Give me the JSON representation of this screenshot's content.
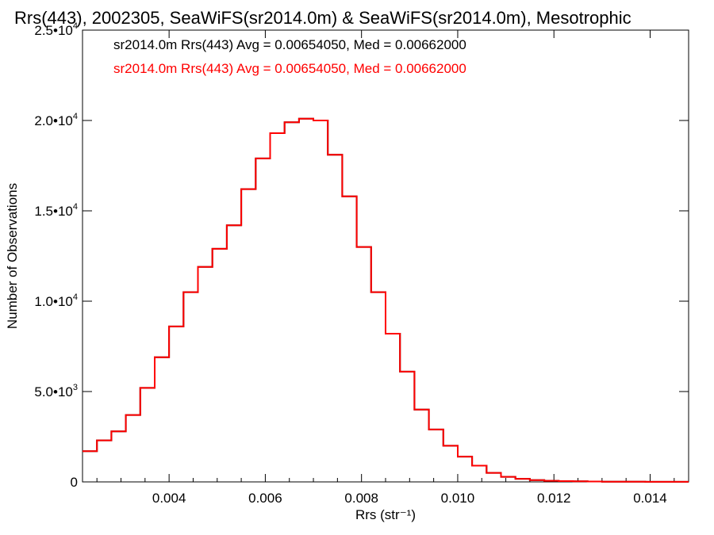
{
  "chart_data": {
    "type": "line",
    "title": "Rrs(443), 2002305, SeaWiFS(sr2014.0m) & SeaWiFS(sr2014.0m), Mesotrophic",
    "xlabel": "Rrs (str⁻¹)",
    "ylabel": "Number of Observations",
    "xlim": [
      0.0022,
      0.0148
    ],
    "ylim": [
      0,
      25000
    ],
    "x_ticks": [
      0.004,
      0.006,
      0.008,
      0.01,
      0.012,
      0.014
    ],
    "x_tick_labels": [
      "0.004",
      "0.006",
      "0.008",
      "0.010",
      "0.012",
      "0.014"
    ],
    "y_ticks": [
      0,
      5000,
      10000,
      15000,
      20000,
      25000
    ],
    "y_tick_labels": [
      {
        "base": "0",
        "exp": ""
      },
      {
        "base": "5.0•10",
        "exp": "3"
      },
      {
        "base": "1.0•10",
        "exp": "4"
      },
      {
        "base": "1.5•10",
        "exp": "4"
      },
      {
        "base": "2.0•10",
        "exp": "4"
      },
      {
        "base": "2.5•10",
        "exp": "4"
      }
    ],
    "grid": false,
    "legend_position": "top-left",
    "annotations": [
      {
        "text": "sr2014.0m Rrs(443) Avg = 0.00654050, Med = 0.00662000",
        "color": "#000000"
      },
      {
        "text": "sr2014.0m Rrs(443) Avg = 0.00654050, Med = 0.00662000",
        "color": "#ff0000"
      }
    ],
    "series": [
      {
        "color": "#000000",
        "x": [
          0.0022,
          0.0025,
          0.0028,
          0.0031,
          0.0034,
          0.0037,
          0.004,
          0.0043,
          0.0046,
          0.0049,
          0.0052,
          0.0055,
          0.0058,
          0.0061,
          0.0064,
          0.0067,
          0.007,
          0.0073,
          0.0076,
          0.0079,
          0.0082,
          0.0085,
          0.0088,
          0.0091,
          0.0094,
          0.0097,
          0.01,
          0.0103,
          0.0106,
          0.0109,
          0.0112,
          0.0115,
          0.0118,
          0.0121,
          0.0124,
          0.0127,
          0.013,
          0.0133,
          0.0136,
          0.0139,
          0.0142,
          0.0145,
          0.0148
        ],
        "y": [
          1700,
          2300,
          2800,
          3700,
          5200,
          6900,
          8600,
          10500,
          11900,
          12900,
          14200,
          16200,
          17900,
          19300,
          19900,
          20100,
          20000,
          18100,
          15800,
          13000,
          10500,
          8200,
          6100,
          4000,
          2900,
          2000,
          1400,
          900,
          500,
          280,
          170,
          100,
          60,
          45,
          30,
          22,
          15,
          10,
          8,
          6,
          5,
          4,
          3
        ]
      },
      {
        "color": "#ff0000",
        "x": [
          0.0022,
          0.0025,
          0.0028,
          0.0031,
          0.0034,
          0.0037,
          0.004,
          0.0043,
          0.0046,
          0.0049,
          0.0052,
          0.0055,
          0.0058,
          0.0061,
          0.0064,
          0.0067,
          0.007,
          0.0073,
          0.0076,
          0.0079,
          0.0082,
          0.0085,
          0.0088,
          0.0091,
          0.0094,
          0.0097,
          0.01,
          0.0103,
          0.0106,
          0.0109,
          0.0112,
          0.0115,
          0.0118,
          0.0121,
          0.0124,
          0.0127,
          0.013,
          0.0133,
          0.0136,
          0.0139,
          0.0142,
          0.0145,
          0.0148
        ],
        "y": [
          1700,
          2300,
          2800,
          3700,
          5200,
          6900,
          8600,
          10500,
          11900,
          12900,
          14200,
          16200,
          17900,
          19300,
          19900,
          20100,
          20000,
          18100,
          15800,
          13000,
          10500,
          8200,
          6100,
          4000,
          2900,
          2000,
          1400,
          900,
          500,
          280,
          170,
          100,
          60,
          45,
          30,
          22,
          15,
          10,
          8,
          6,
          5,
          4,
          3
        ]
      }
    ]
  }
}
